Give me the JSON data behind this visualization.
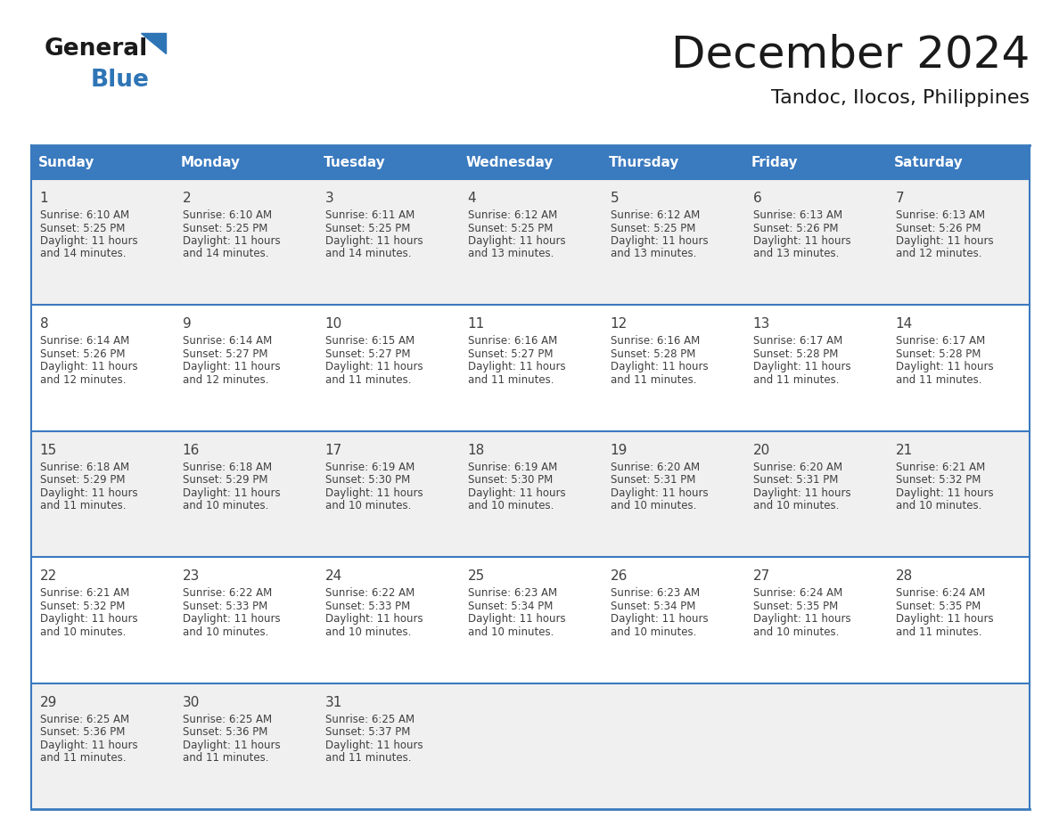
{
  "title": "December 2024",
  "subtitle": "Tandoc, Ilocos, Philippines",
  "header_color": "#3a7abf",
  "header_text_color": "#ffffff",
  "row_bg_even": "#f0f0f0",
  "row_bg_odd": "#ffffff",
  "text_color": "#333333",
  "border_color": "#3a7abf",
  "days_of_week": [
    "Sunday",
    "Monday",
    "Tuesday",
    "Wednesday",
    "Thursday",
    "Friday",
    "Saturday"
  ],
  "logo_general_color": "#1a1a1a",
  "logo_blue_color": "#2e75b6",
  "logo_triangle_color": "#2e75b6",
  "calendar_data": [
    [
      {
        "day": 1,
        "sunrise": "6:10 AM",
        "sunset": "5:25 PM",
        "daylight": "11 hours and 14 minutes."
      },
      {
        "day": 2,
        "sunrise": "6:10 AM",
        "sunset": "5:25 PM",
        "daylight": "11 hours and 14 minutes."
      },
      {
        "day": 3,
        "sunrise": "6:11 AM",
        "sunset": "5:25 PM",
        "daylight": "11 hours and 14 minutes."
      },
      {
        "day": 4,
        "sunrise": "6:12 AM",
        "sunset": "5:25 PM",
        "daylight": "11 hours and 13 minutes."
      },
      {
        "day": 5,
        "sunrise": "6:12 AM",
        "sunset": "5:25 PM",
        "daylight": "11 hours and 13 minutes."
      },
      {
        "day": 6,
        "sunrise": "6:13 AM",
        "sunset": "5:26 PM",
        "daylight": "11 hours and 13 minutes."
      },
      {
        "day": 7,
        "sunrise": "6:13 AM",
        "sunset": "5:26 PM",
        "daylight": "11 hours and 12 minutes."
      }
    ],
    [
      {
        "day": 8,
        "sunrise": "6:14 AM",
        "sunset": "5:26 PM",
        "daylight": "11 hours and 12 minutes."
      },
      {
        "day": 9,
        "sunrise": "6:14 AM",
        "sunset": "5:27 PM",
        "daylight": "11 hours and 12 minutes."
      },
      {
        "day": 10,
        "sunrise": "6:15 AM",
        "sunset": "5:27 PM",
        "daylight": "11 hours and 11 minutes."
      },
      {
        "day": 11,
        "sunrise": "6:16 AM",
        "sunset": "5:27 PM",
        "daylight": "11 hours and 11 minutes."
      },
      {
        "day": 12,
        "sunrise": "6:16 AM",
        "sunset": "5:28 PM",
        "daylight": "11 hours and 11 minutes."
      },
      {
        "day": 13,
        "sunrise": "6:17 AM",
        "sunset": "5:28 PM",
        "daylight": "11 hours and 11 minutes."
      },
      {
        "day": 14,
        "sunrise": "6:17 AM",
        "sunset": "5:28 PM",
        "daylight": "11 hours and 11 minutes."
      }
    ],
    [
      {
        "day": 15,
        "sunrise": "6:18 AM",
        "sunset": "5:29 PM",
        "daylight": "11 hours and 11 minutes."
      },
      {
        "day": 16,
        "sunrise": "6:18 AM",
        "sunset": "5:29 PM",
        "daylight": "11 hours and 10 minutes."
      },
      {
        "day": 17,
        "sunrise": "6:19 AM",
        "sunset": "5:30 PM",
        "daylight": "11 hours and 10 minutes."
      },
      {
        "day": 18,
        "sunrise": "6:19 AM",
        "sunset": "5:30 PM",
        "daylight": "11 hours and 10 minutes."
      },
      {
        "day": 19,
        "sunrise": "6:20 AM",
        "sunset": "5:31 PM",
        "daylight": "11 hours and 10 minutes."
      },
      {
        "day": 20,
        "sunrise": "6:20 AM",
        "sunset": "5:31 PM",
        "daylight": "11 hours and 10 minutes."
      },
      {
        "day": 21,
        "sunrise": "6:21 AM",
        "sunset": "5:32 PM",
        "daylight": "11 hours and 10 minutes."
      }
    ],
    [
      {
        "day": 22,
        "sunrise": "6:21 AM",
        "sunset": "5:32 PM",
        "daylight": "11 hours and 10 minutes."
      },
      {
        "day": 23,
        "sunrise": "6:22 AM",
        "sunset": "5:33 PM",
        "daylight": "11 hours and 10 minutes."
      },
      {
        "day": 24,
        "sunrise": "6:22 AM",
        "sunset": "5:33 PM",
        "daylight": "11 hours and 10 minutes."
      },
      {
        "day": 25,
        "sunrise": "6:23 AM",
        "sunset": "5:34 PM",
        "daylight": "11 hours and 10 minutes."
      },
      {
        "day": 26,
        "sunrise": "6:23 AM",
        "sunset": "5:34 PM",
        "daylight": "11 hours and 10 minutes."
      },
      {
        "day": 27,
        "sunrise": "6:24 AM",
        "sunset": "5:35 PM",
        "daylight": "11 hours and 10 minutes."
      },
      {
        "day": 28,
        "sunrise": "6:24 AM",
        "sunset": "5:35 PM",
        "daylight": "11 hours and 11 minutes."
      }
    ],
    [
      {
        "day": 29,
        "sunrise": "6:25 AM",
        "sunset": "5:36 PM",
        "daylight": "11 hours and 11 minutes."
      },
      {
        "day": 30,
        "sunrise": "6:25 AM",
        "sunset": "5:36 PM",
        "daylight": "11 hours and 11 minutes."
      },
      {
        "day": 31,
        "sunrise": "6:25 AM",
        "sunset": "5:37 PM",
        "daylight": "11 hours and 11 minutes."
      },
      null,
      null,
      null,
      null
    ]
  ]
}
